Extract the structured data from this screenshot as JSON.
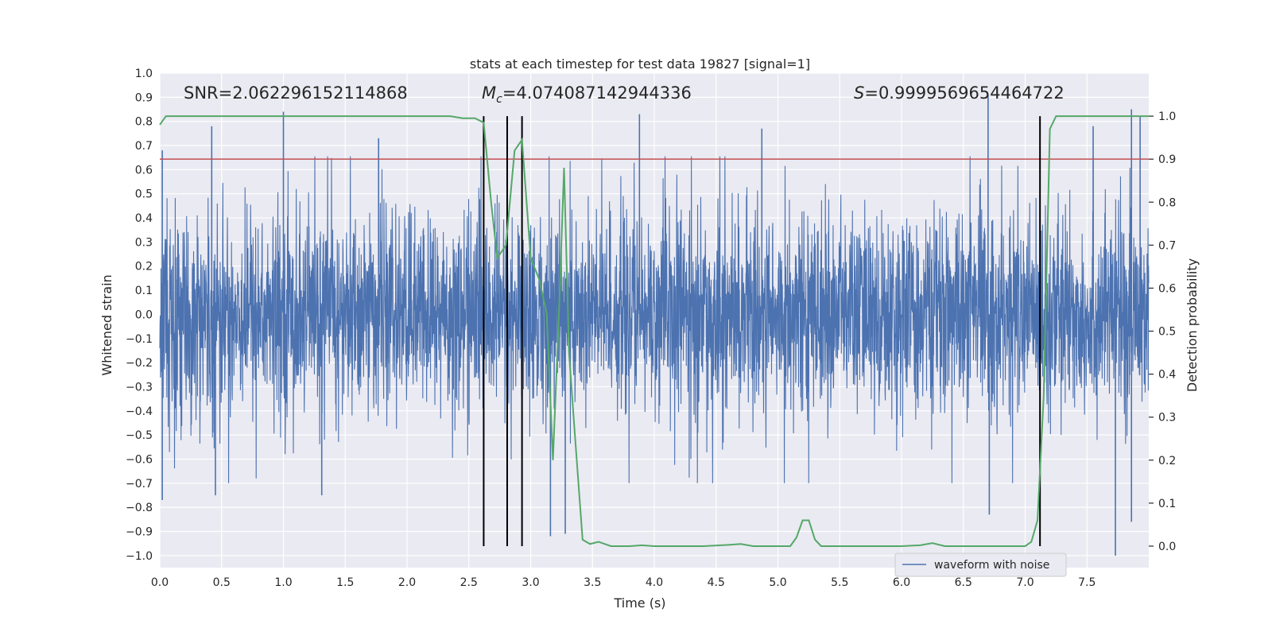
{
  "chart_data": {
    "type": "line",
    "title": "stats at each timestep for test data 19827 [signal=1]",
    "xlabel": "Time (s)",
    "ylabel_left": "Whitened strain",
    "ylabel_right": "Detection probability",
    "xlim": [
      0.0,
      8.0
    ],
    "ylim_left": [
      -1.05,
      1.0
    ],
    "ylim_right": [
      -0.05,
      1.1
    ],
    "x_ticks": [
      0.0,
      0.5,
      1.0,
      1.5,
      2.0,
      2.5,
      3.0,
      3.5,
      4.0,
      4.5,
      5.0,
      5.5,
      6.0,
      6.5,
      7.0,
      7.5
    ],
    "x_tick_labels": [
      "0.0",
      "0.5",
      "1.0",
      "1.5",
      "2.0",
      "2.5",
      "3.0",
      "3.5",
      "4.0",
      "4.5",
      "5.0",
      "5.5",
      "6.0",
      "6.5",
      "7.0",
      "7.5"
    ],
    "y_left_ticks": [
      1.0,
      0.9,
      0.8,
      0.7,
      0.6,
      0.5,
      0.4,
      0.3,
      0.2,
      0.1,
      0.0,
      -0.1,
      -0.2,
      -0.3,
      -0.4,
      -0.5,
      -0.6,
      -0.7,
      -0.8,
      -0.9,
      -1.0
    ],
    "y_left_tick_labels": [
      "1.0",
      "0.9",
      "0.8",
      "0.7",
      "0.6",
      "0.5",
      "0.4",
      "0.3",
      "0.2",
      "0.1",
      "0.0",
      "−0.1",
      "−0.2",
      "−0.3",
      "−0.4",
      "−0.5",
      "−0.6",
      "−0.7",
      "−0.8",
      "−0.9",
      "−1.0"
    ],
    "y_right_ticks": [
      1.0,
      0.9,
      0.8,
      0.7,
      0.6,
      0.5,
      0.4,
      0.3,
      0.2,
      0.1,
      0.0
    ],
    "y_right_tick_labels": [
      "1.0",
      "0.9",
      "0.8",
      "0.7",
      "0.6",
      "0.5",
      "0.4",
      "0.3",
      "0.2",
      "0.1",
      "0.0"
    ],
    "threshold": {
      "value": 0.9,
      "axis": "right",
      "color": "#c44e52"
    },
    "vertical_markers": [
      2.62,
      2.81,
      2.93,
      7.12
    ],
    "marker_color": "#000000",
    "annotations": {
      "snr": "SNR=2.062296152114868",
      "mc_symbol": "M",
      "mc_sub": "c",
      "mc_value": "=4.074087142944336",
      "s_symbol": "S",
      "s_value": "=0.9999569654464722"
    },
    "series": [
      {
        "name": "waveform with noise",
        "axis": "left",
        "color": "#4c72b0",
        "kind": "noise",
        "x_range": [
          0.0,
          8.0
        ],
        "typical_amplitude": 0.35,
        "max_positive": 0.91,
        "min_negative": -1.0,
        "spikes": [
          {
            "x": 0.02,
            "y": 0.68
          },
          {
            "x": 0.02,
            "y": -0.77
          },
          {
            "x": 0.42,
            "y": 0.78
          },
          {
            "x": 0.45,
            "y": -0.75
          },
          {
            "x": 1.0,
            "y": 0.84
          },
          {
            "x": 1.31,
            "y": -0.75
          },
          {
            "x": 1.77,
            "y": 0.73
          },
          {
            "x": 3.16,
            "y": -0.92
          },
          {
            "x": 3.28,
            "y": -0.91
          },
          {
            "x": 3.88,
            "y": 0.83
          },
          {
            "x": 4.87,
            "y": 0.77
          },
          {
            "x": 6.7,
            "y": 0.91
          },
          {
            "x": 6.71,
            "y": -0.83
          },
          {
            "x": 7.55,
            "y": 0.78
          },
          {
            "x": 7.73,
            "y": -1.0
          },
          {
            "x": 7.86,
            "y": 0.85
          },
          {
            "x": 7.86,
            "y": -0.86
          },
          {
            "x": 7.93,
            "y": 0.82
          }
        ]
      },
      {
        "name": "detection probability",
        "axis": "right",
        "color": "#55a868",
        "x": [
          0.0,
          0.05,
          0.5,
          1.0,
          1.5,
          2.0,
          2.35,
          2.45,
          2.55,
          2.62,
          2.68,
          2.73,
          2.8,
          2.87,
          2.93,
          3.0,
          3.07,
          3.13,
          3.18,
          3.23,
          3.27,
          3.31,
          3.36,
          3.42,
          3.48,
          3.55,
          3.65,
          3.8,
          3.9,
          4.0,
          4.2,
          4.4,
          4.6,
          4.7,
          4.8,
          4.9,
          5.0,
          5.1,
          5.15,
          5.2,
          5.25,
          5.3,
          5.35,
          5.5,
          6.0,
          6.15,
          6.25,
          6.35,
          6.6,
          7.0,
          7.05,
          7.1,
          7.15,
          7.2,
          7.25,
          7.5,
          8.0
        ],
        "values": [
          0.98,
          1.0,
          1.0,
          1.0,
          1.0,
          1.0,
          1.0,
          0.995,
          0.995,
          0.985,
          0.8,
          0.67,
          0.7,
          0.92,
          0.945,
          0.67,
          0.62,
          0.54,
          0.2,
          0.55,
          0.88,
          0.45,
          0.25,
          0.015,
          0.005,
          0.01,
          0.0,
          0.0,
          0.002,
          0.0,
          0.0,
          0.0,
          0.003,
          0.005,
          0.0,
          0.0,
          0.0,
          0.0,
          0.02,
          0.06,
          0.06,
          0.015,
          0.0,
          0.0,
          0.0,
          0.002,
          0.007,
          0.0,
          0.0,
          0.0,
          0.01,
          0.06,
          0.35,
          0.97,
          1.0,
          1.0,
          1.0
        ]
      }
    ],
    "legend": {
      "entries": [
        "waveform with noise"
      ],
      "placement": "lower-right"
    }
  }
}
